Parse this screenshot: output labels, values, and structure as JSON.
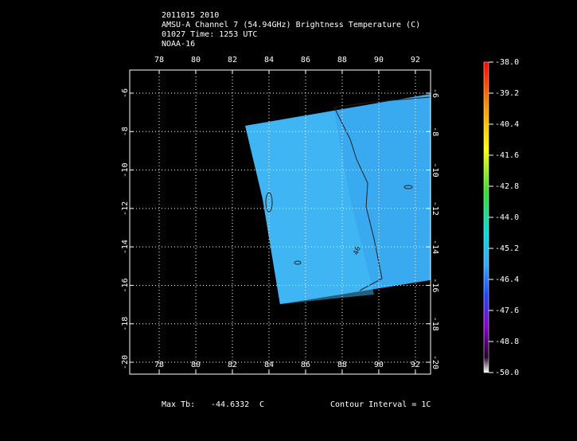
{
  "header": {
    "lines": [
      "2011015 2010",
      "AMSU-A Channel 7 (54.94GHz) Brightness Temperature (C)",
      "01027 Time: 1253 UTC",
      "NOAA-16"
    ]
  },
  "map": {
    "xlim": [
      76.39,
      92.83
    ],
    "xticks": [
      78,
      80,
      82,
      84,
      86,
      88,
      90,
      92
    ],
    "ylim": [
      -20.62,
      -4.8
    ],
    "yticks": [
      -6,
      -8,
      -10,
      -12,
      -14,
      -16,
      -18,
      -20
    ],
    "grid": true,
    "swath": {
      "color": "#3aaaf0",
      "corners": [
        [
          82.7,
          -7.7
        ],
        [
          92.83,
          -6.04
        ],
        [
          92.83,
          -15.73
        ],
        [
          84.6,
          -16.98
        ],
        [
          83.65,
          -11.5
        ]
      ]
    },
    "contour_label": "46"
  },
  "colorbar": {
    "lim": [
      -50,
      -38
    ],
    "ticks": [
      {
        "value": -38,
        "label": "-38.0"
      },
      {
        "value": -39.2,
        "label": "-39.2"
      },
      {
        "value": -40.4,
        "label": "-40.4"
      },
      {
        "value": -41.6,
        "label": "-41.6"
      },
      {
        "value": -42.8,
        "label": "-42.8"
      },
      {
        "value": -44,
        "label": "-44.0"
      },
      {
        "value": -45.2,
        "label": "-45.2"
      },
      {
        "value": -46.4,
        "label": "-46.4"
      },
      {
        "value": -47.6,
        "label": "-47.6"
      },
      {
        "value": -48.8,
        "label": "-48.8"
      },
      {
        "value": -50,
        "label": "-50.0"
      }
    ]
  },
  "footer": {
    "max_label": "Max Tb:",
    "max_value": "-44.6332",
    "max_unit": "C",
    "contour_interval": "Contour Interval = 1C"
  }
}
